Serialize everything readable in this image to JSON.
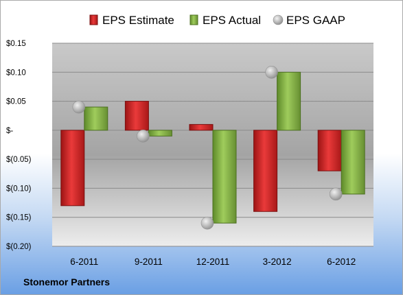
{
  "chart_data": {
    "type": "bar",
    "categories": [
      "6-2011",
      "9-2011",
      "12-2011",
      "3-2012",
      "6-2012"
    ],
    "series": [
      {
        "name": "EPS Estimate",
        "kind": "bar",
        "color": "#d42a2a",
        "values": [
          -0.13,
          0.05,
          0.01,
          -0.14,
          -0.07
        ]
      },
      {
        "name": "EPS Actual",
        "kind": "bar",
        "color": "#8bb84a",
        "values": [
          0.04,
          -0.01,
          -0.16,
          0.1,
          -0.11
        ]
      },
      {
        "name": "EPS GAAP",
        "kind": "marker",
        "color": "#b0b0b0",
        "values": [
          0.04,
          -0.01,
          -0.16,
          0.1,
          -0.11
        ]
      }
    ],
    "ylim": [
      -0.2,
      0.15
    ],
    "yticks": [
      {
        "value": 0.15,
        "label": "$0.15"
      },
      {
        "value": 0.1,
        "label": "$0.10"
      },
      {
        "value": 0.05,
        "label": "$0.05"
      },
      {
        "value": 0,
        "label": "$-"
      },
      {
        "value": -0.05,
        "label": "$(0.05)"
      },
      {
        "value": -0.1,
        "label": "$(0.10)"
      },
      {
        "value": -0.15,
        "label": "$(0.15)"
      },
      {
        "value": -0.2,
        "label": "$(0.20)"
      }
    ],
    "grid": true,
    "legend": "top"
  },
  "footer": {
    "company": "Stonemor Partners"
  }
}
